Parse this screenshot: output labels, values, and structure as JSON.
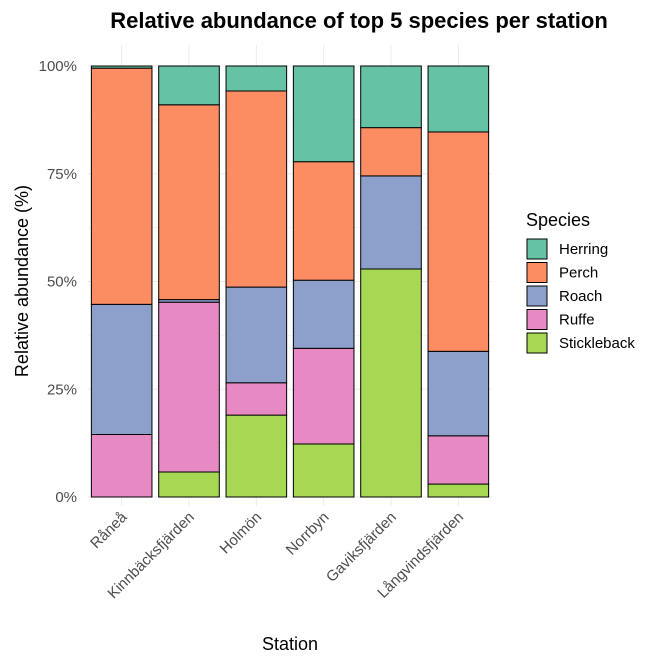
{
  "chart_data": {
    "type": "bar",
    "stacked": true,
    "title": "Relative abundance of top 5 species per station",
    "xlabel": "Station",
    "ylabel": "Relative abundance (%)",
    "ylim": [
      0,
      100
    ],
    "yticks": [
      0,
      25,
      50,
      75,
      100
    ],
    "ytick_labels": [
      "0%",
      "25%",
      "50%",
      "75%",
      "100%"
    ],
    "grid": true,
    "legend": {
      "title": "Species",
      "position": "right"
    },
    "categories": [
      "Råneå",
      "Kinnbäcksfjärden",
      "Holmön",
      "Norrbyn",
      "Gaviksfjärden",
      "Långvindsfjärden"
    ],
    "series": [
      {
        "name": "Herring",
        "color": "#66c2a5",
        "values": [
          0.5,
          9.0,
          5.8,
          22.2,
          14.3,
          15.3
        ]
      },
      {
        "name": "Perch",
        "color": "#fc8d62",
        "values": [
          54.8,
          45.2,
          45.5,
          27.5,
          11.2,
          50.9
        ]
      },
      {
        "name": "Roach",
        "color": "#8da0cb",
        "values": [
          30.2,
          0.6,
          22.2,
          15.8,
          21.6,
          19.6
        ]
      },
      {
        "name": "Ruffe",
        "color": "#e78ac3",
        "values": [
          14.5,
          39.4,
          7.5,
          22.2,
          0.0,
          11.2
        ]
      },
      {
        "name": "Stickleback",
        "color": "#a6d854",
        "values": [
          0.0,
          5.8,
          19.0,
          12.3,
          52.9,
          3.0
        ]
      }
    ]
  }
}
